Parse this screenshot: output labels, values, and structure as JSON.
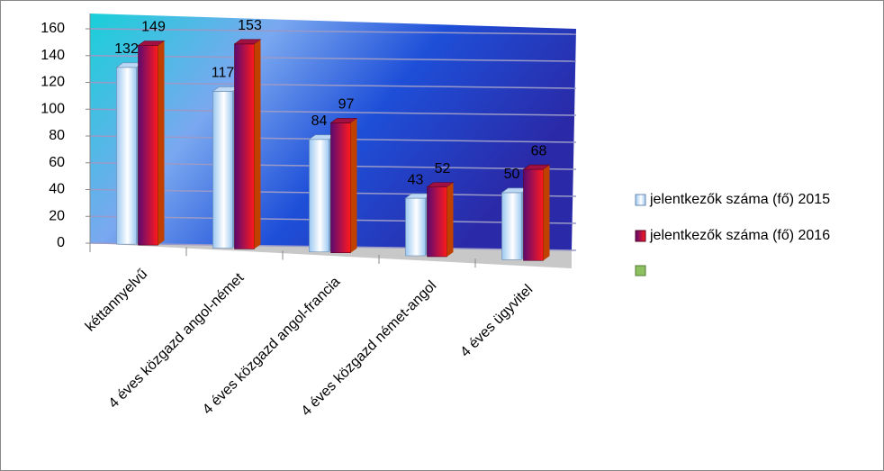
{
  "chart_data": {
    "type": "bar",
    "categories": [
      "kéttannyelvű",
      "4 éves közgazd angol-német",
      "4 éves közgazd angol-francia",
      "4 éves közgazd német-angol",
      "4 éves ügyvitel"
    ],
    "series": [
      {
        "name": "jelentkezők száma (fő) 2015",
        "color": "#9cc8f2",
        "values": [
          132,
          117,
          84,
          43,
          50
        ]
      },
      {
        "name": "jelentkezők száma (fő) 2016",
        "color": "#b0104a",
        "values": [
          149,
          153,
          97,
          52,
          68
        ]
      }
    ],
    "ylim": [
      0,
      160
    ],
    "yticks": [
      0,
      20,
      40,
      60,
      80,
      100,
      120,
      140,
      160
    ],
    "grid": true,
    "legend": "right"
  }
}
